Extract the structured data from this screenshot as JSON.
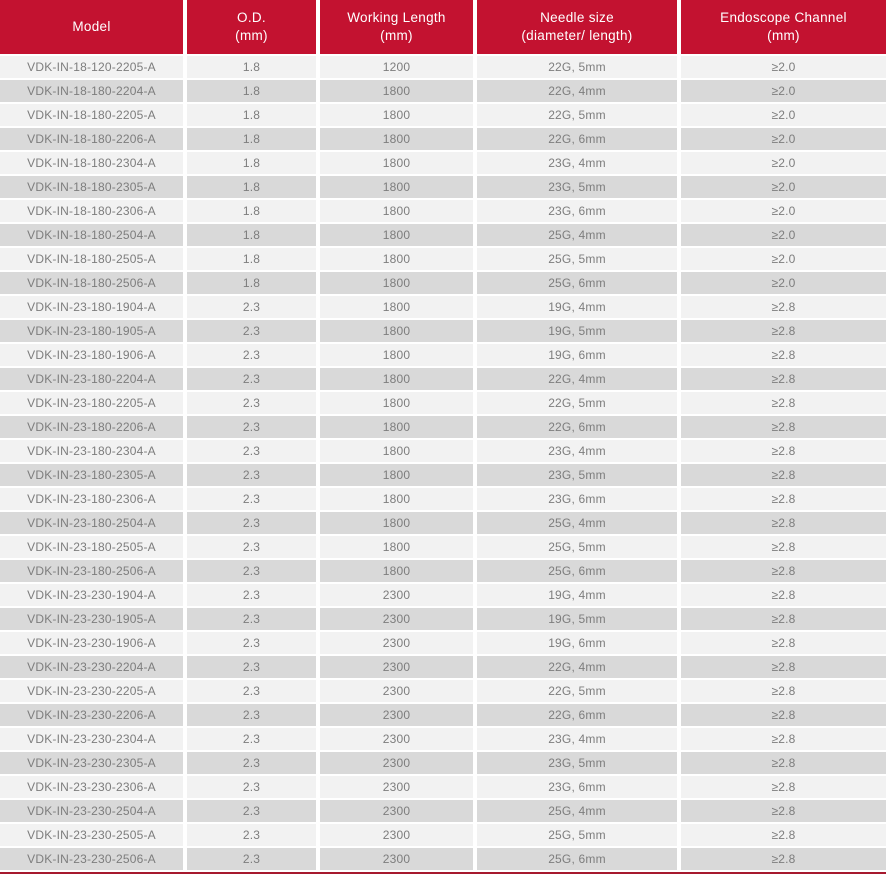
{
  "colors": {
    "header_bg": "#c31230",
    "bottom_rule": "#a6192e",
    "row_light": "#f2f2f2",
    "row_dark": "#d9d9d9",
    "cell_text": "#7d7d7d",
    "header_text": "#ffffff"
  },
  "table": {
    "columns": [
      {
        "line1": "Model",
        "line2": ""
      },
      {
        "line1": "O.D.",
        "line2": "(mm)"
      },
      {
        "line1": "Working Length",
        "line2": "(mm)"
      },
      {
        "line1": "Needle size",
        "line2": "(diameter/ length)"
      },
      {
        "line1": "Endoscope Channel",
        "line2": "(mm)"
      }
    ],
    "rows": [
      [
        "VDK-IN-18-120-2205-A",
        "1.8",
        "1200",
        "22G, 5mm",
        "≥2.0"
      ],
      [
        "VDK-IN-18-180-2204-A",
        "1.8",
        "1800",
        "22G, 4mm",
        "≥2.0"
      ],
      [
        "VDK-IN-18-180-2205-A",
        "1.8",
        "1800",
        "22G, 5mm",
        "≥2.0"
      ],
      [
        "VDK-IN-18-180-2206-A",
        "1.8",
        "1800",
        "22G, 6mm",
        "≥2.0"
      ],
      [
        "VDK-IN-18-180-2304-A",
        "1.8",
        "1800",
        "23G, 4mm",
        "≥2.0"
      ],
      [
        "VDK-IN-18-180-2305-A",
        "1.8",
        "1800",
        "23G, 5mm",
        "≥2.0"
      ],
      [
        "VDK-IN-18-180-2306-A",
        "1.8",
        "1800",
        "23G, 6mm",
        "≥2.0"
      ],
      [
        "VDK-IN-18-180-2504-A",
        "1.8",
        "1800",
        "25G, 4mm",
        "≥2.0"
      ],
      [
        "VDK-IN-18-180-2505-A",
        "1.8",
        "1800",
        "25G, 5mm",
        "≥2.0"
      ],
      [
        "VDK-IN-18-180-2506-A",
        "1.8",
        "1800",
        "25G, 6mm",
        "≥2.0"
      ],
      [
        "VDK-IN-23-180-1904-A",
        "2.3",
        "1800",
        "19G, 4mm",
        "≥2.8"
      ],
      [
        "VDK-IN-23-180-1905-A",
        "2.3",
        "1800",
        "19G, 5mm",
        "≥2.8"
      ],
      [
        "VDK-IN-23-180-1906-A",
        "2.3",
        "1800",
        "19G, 6mm",
        "≥2.8"
      ],
      [
        "VDK-IN-23-180-2204-A",
        "2.3",
        "1800",
        "22G, 4mm",
        "≥2.8"
      ],
      [
        "VDK-IN-23-180-2205-A",
        "2.3",
        "1800",
        "22G, 5mm",
        "≥2.8"
      ],
      [
        "VDK-IN-23-180-2206-A",
        "2.3",
        "1800",
        "22G, 6mm",
        "≥2.8"
      ],
      [
        "VDK-IN-23-180-2304-A",
        "2.3",
        "1800",
        "23G, 4mm",
        "≥2.8"
      ],
      [
        "VDK-IN-23-180-2305-A",
        "2.3",
        "1800",
        "23G, 5mm",
        "≥2.8"
      ],
      [
        "VDK-IN-23-180-2306-A",
        "2.3",
        "1800",
        "23G, 6mm",
        "≥2.8"
      ],
      [
        "VDK-IN-23-180-2504-A",
        "2.3",
        "1800",
        "25G, 4mm",
        "≥2.8"
      ],
      [
        "VDK-IN-23-180-2505-A",
        "2.3",
        "1800",
        "25G, 5mm",
        "≥2.8"
      ],
      [
        "VDK-IN-23-180-2506-A",
        "2.3",
        "1800",
        "25G, 6mm",
        "≥2.8"
      ],
      [
        "VDK-IN-23-230-1904-A",
        "2.3",
        "2300",
        "19G, 4mm",
        "≥2.8"
      ],
      [
        "VDK-IN-23-230-1905-A",
        "2.3",
        "2300",
        "19G, 5mm",
        "≥2.8"
      ],
      [
        "VDK-IN-23-230-1906-A",
        "2.3",
        "2300",
        "19G, 6mm",
        "≥2.8"
      ],
      [
        "VDK-IN-23-230-2204-A",
        "2.3",
        "2300",
        "22G, 4mm",
        "≥2.8"
      ],
      [
        "VDK-IN-23-230-2205-A",
        "2.3",
        "2300",
        "22G, 5mm",
        "≥2.8"
      ],
      [
        "VDK-IN-23-230-2206-A",
        "2.3",
        "2300",
        "22G, 6mm",
        "≥2.8"
      ],
      [
        "VDK-IN-23-230-2304-A",
        "2.3",
        "2300",
        "23G, 4mm",
        "≥2.8"
      ],
      [
        "VDK-IN-23-230-2305-A",
        "2.3",
        "2300",
        "23G, 5mm",
        "≥2.8"
      ],
      [
        "VDK-IN-23-230-2306-A",
        "2.3",
        "2300",
        "23G, 6mm",
        "≥2.8"
      ],
      [
        "VDK-IN-23-230-2504-A",
        "2.3",
        "2300",
        "25G, 4mm",
        "≥2.8"
      ],
      [
        "VDK-IN-23-230-2505-A",
        "2.3",
        "2300",
        "25G, 5mm",
        "≥2.8"
      ],
      [
        "VDK-IN-23-230-2506-A",
        "2.3",
        "2300",
        "25G, 6mm",
        "≥2.8"
      ]
    ]
  }
}
